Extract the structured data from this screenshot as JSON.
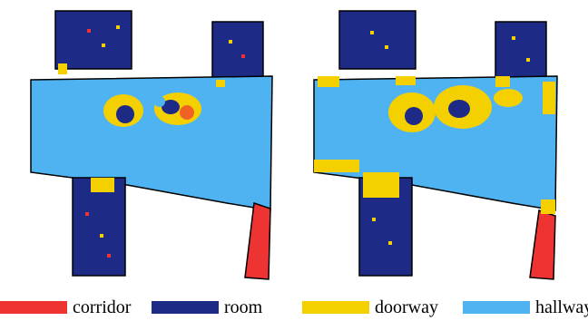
{
  "colors": {
    "corridor": "#ee3333",
    "room": "#1d2a86",
    "doorway": "#f5d000",
    "hallway": "#4fb3f2",
    "outline": "#000000",
    "background": "#ffffff"
  },
  "legend": [
    {
      "label": "corridor",
      "color": "#ee3333"
    },
    {
      "label": "room",
      "color": "#1d2a86"
    },
    {
      "label": "doorway",
      "color": "#f5d000"
    },
    {
      "label": "hallway",
      "color": "#4fb3f2"
    }
  ],
  "maps": [
    {
      "panel": "left",
      "doorway_blobs": "scattered"
    },
    {
      "panel": "right",
      "doorway_blobs": "dense"
    }
  ]
}
